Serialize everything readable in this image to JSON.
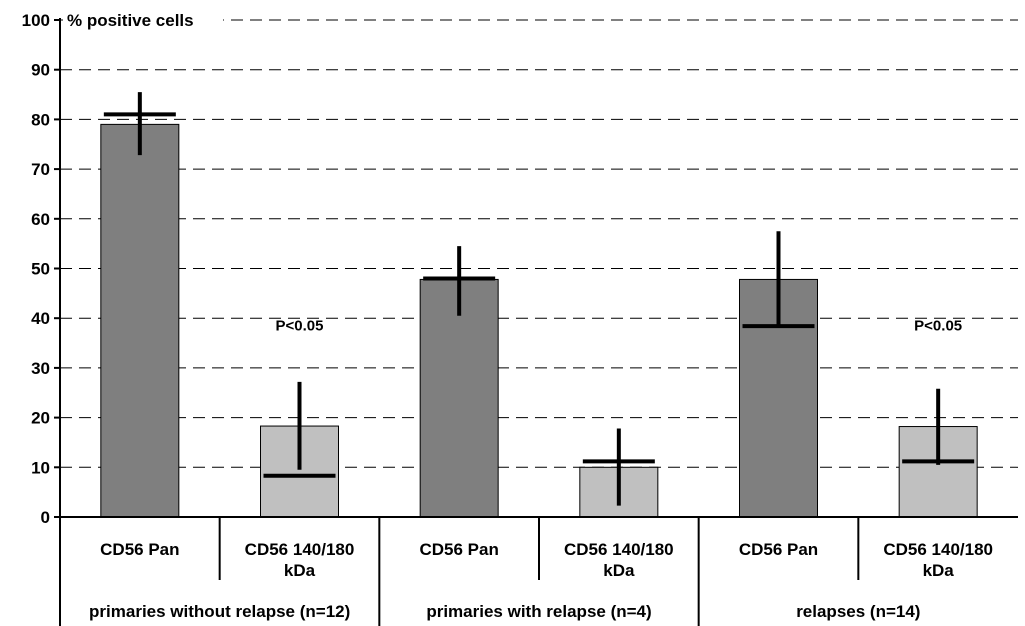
{
  "chart_data": {
    "type": "bar",
    "ylabel": "% positive cells",
    "ylim": [
      0,
      100
    ],
    "yticks": [
      "0",
      "10",
      "20",
      "30",
      "40",
      "50",
      "60",
      "70",
      "80",
      "90",
      "100"
    ],
    "grid": true,
    "categories": [
      "CD56 Pan",
      "CD56 140/180 kDa",
      "CD56 Pan",
      "CD56 140/180 kDa",
      "CD56 Pan",
      "CD56 140/180 kDa"
    ],
    "groups": [
      "primaries without relapse (n=12)",
      "primaries with relapse (n=4)",
      "relapses (n=14)"
    ],
    "values": [
      79,
      18.3,
      47.8,
      10,
      47.8,
      18.2
    ],
    "medians": [
      81,
      8.3,
      48,
      11.2,
      38.4,
      11.2
    ],
    "error_bars": [
      [
        72.8,
        85.5
      ],
      [
        9.5,
        27.2
      ],
      [
        40.5,
        54.5
      ],
      [
        2.3,
        17.8
      ],
      [
        38.4,
        57.5
      ],
      [
        10.5,
        25.8
      ]
    ],
    "bar_colors": [
      "#7f7f7f",
      "#c0c0c0",
      "#7f7f7f",
      "#c0c0c0",
      "#7f7f7f",
      "#c0c0c0"
    ],
    "annotations": [
      {
        "category_index": 1,
        "y": 38.5,
        "text": "P<0.05"
      },
      {
        "category_index": 5,
        "y": 38.5,
        "text": "P<0.05"
      }
    ]
  }
}
